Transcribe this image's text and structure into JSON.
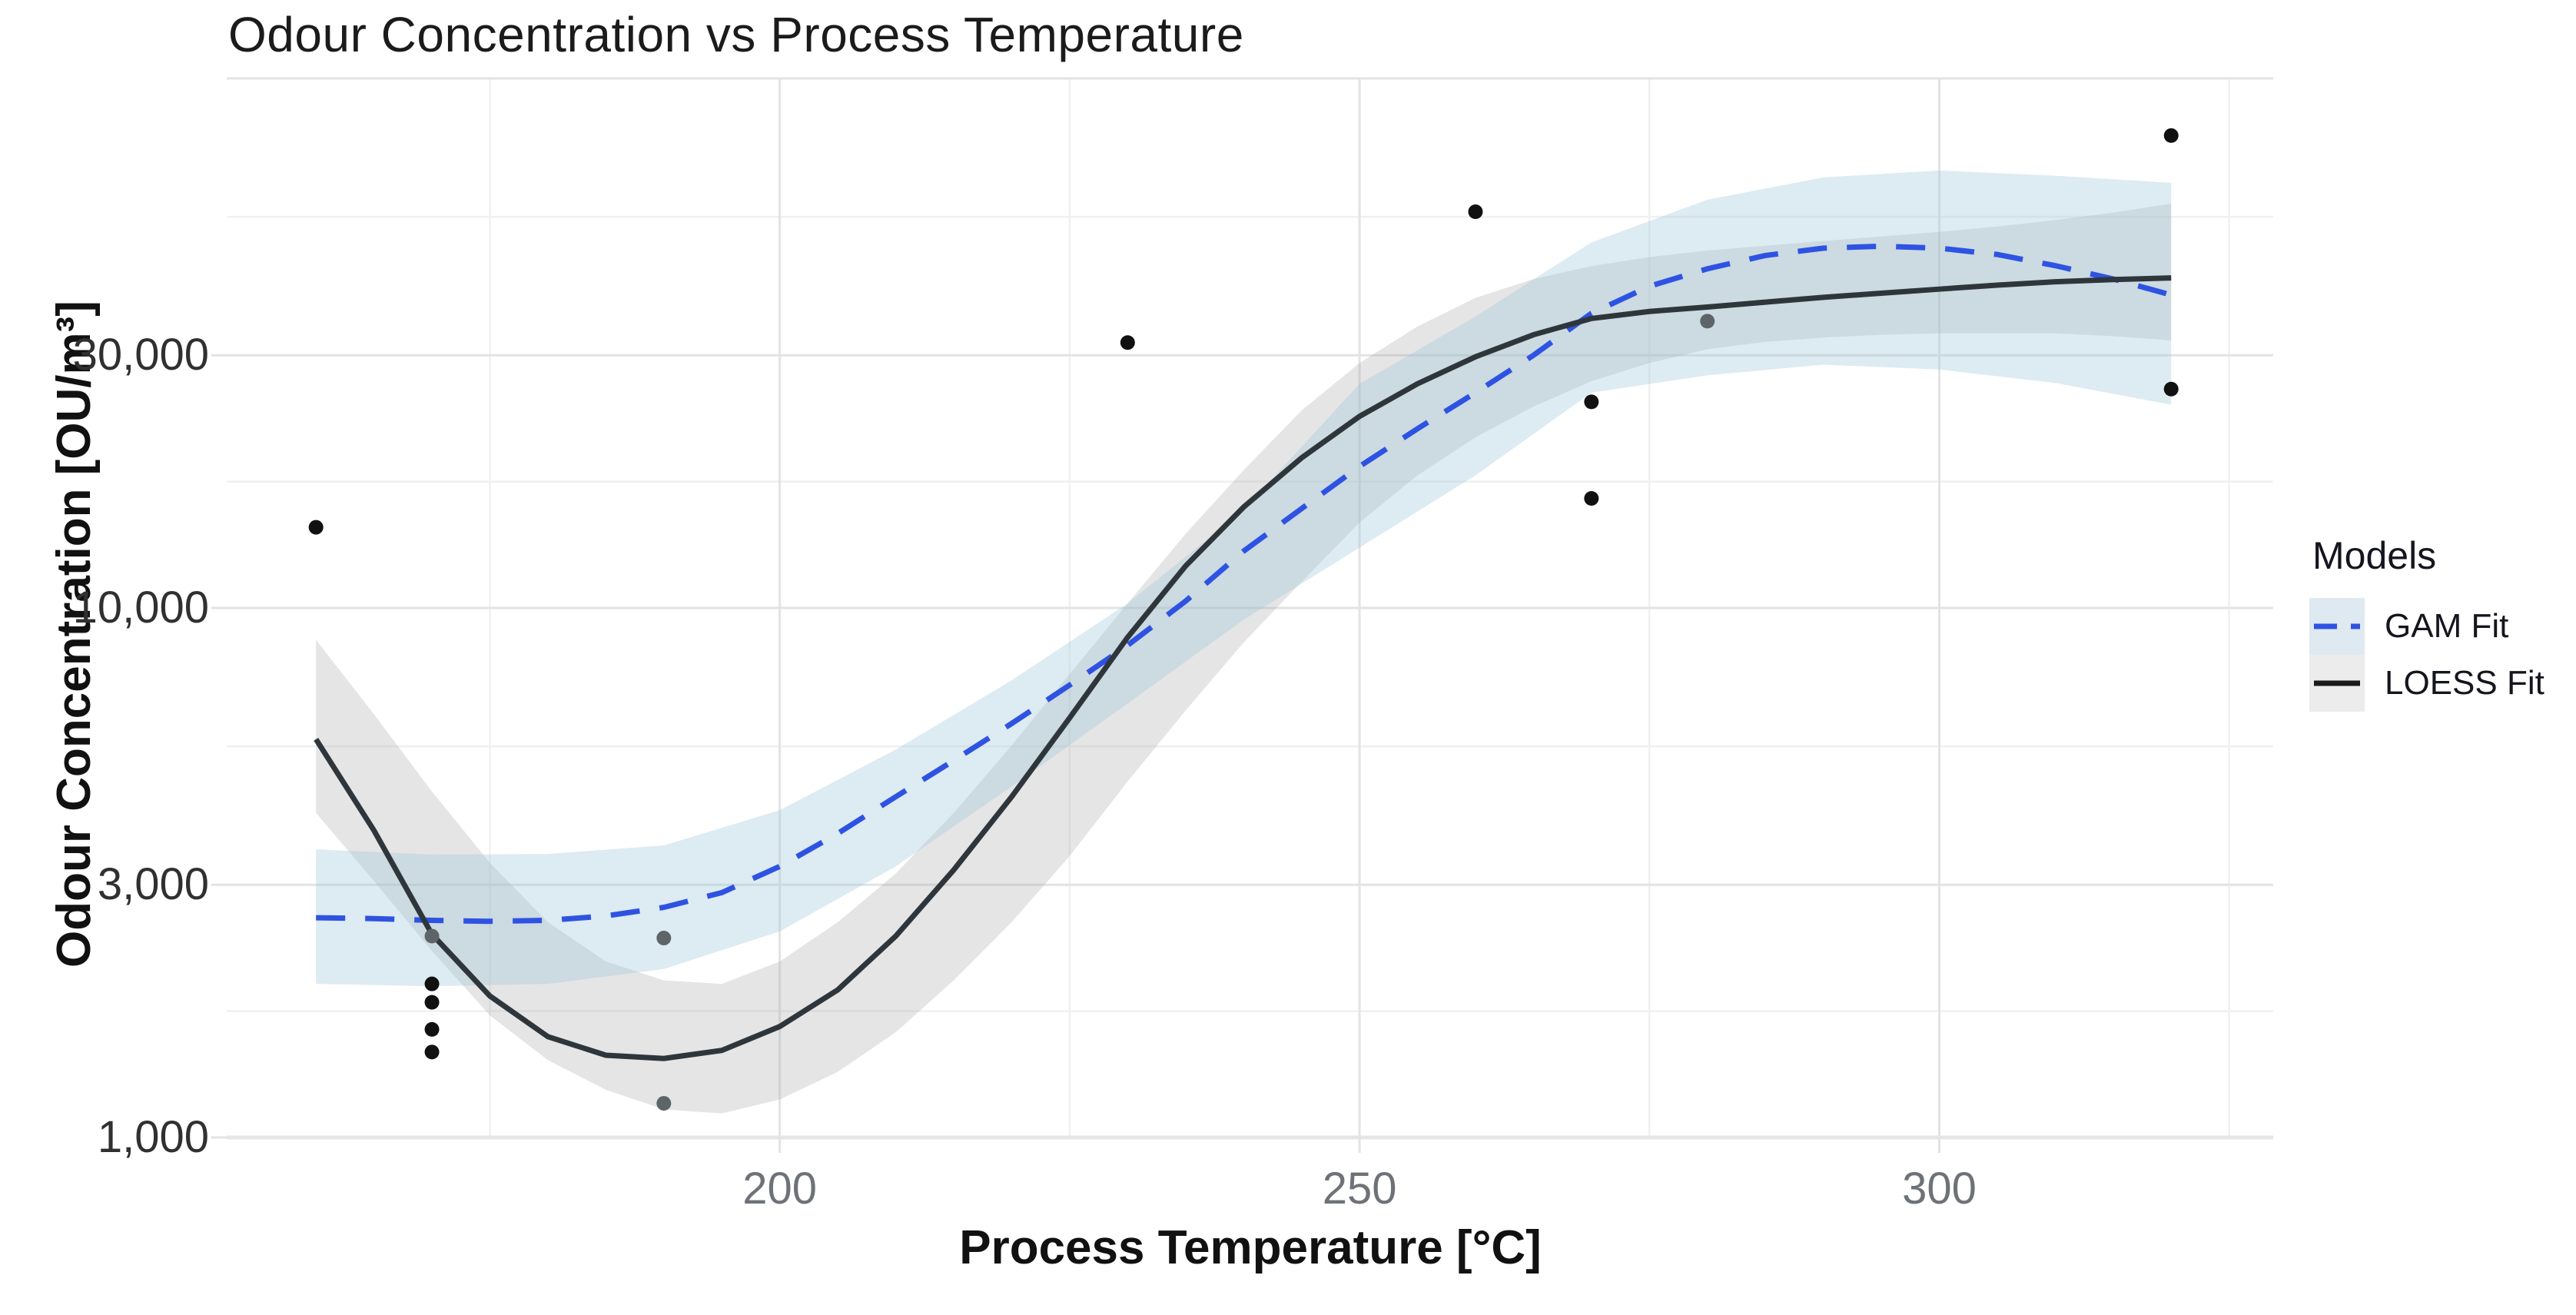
{
  "title": "Odour Concentration vs Process Temperature",
  "axes": {
    "x": {
      "label": "Process Temperature [°C]",
      "range": [
        152.3,
        328.8
      ],
      "major_ticks": [
        200,
        250,
        300
      ],
      "tick_labels": [
        "200",
        "250",
        "300"
      ],
      "minor_ticks": [
        175,
        225,
        275,
        325
      ]
    },
    "y": {
      "label": "Odour Concentration [OU/m³]",
      "scale": "log10",
      "range": [
        1000,
        100000
      ],
      "major_gridlines": [
        1000,
        3000,
        10000,
        30000,
        100000
      ],
      "tick_labels": [
        "1,000",
        "3,000",
        "10,000",
        "30,000",
        ""
      ],
      "minor_gridlines": [
        1732,
        5477,
        17320,
        54770
      ]
    }
  },
  "legend": {
    "title": "Models",
    "items": [
      {
        "label": "GAM Fit",
        "line_style": "dashed",
        "line_color": "#2e53e2",
        "swatch_color": "#dee9f1"
      },
      {
        "label": "LOESS Fit",
        "line_style": "solid",
        "line_color": "#1a1a1a",
        "swatch_color": "#ececec"
      }
    ]
  },
  "colors": {
    "background": "#ffffff",
    "major_grid": "#e3e3e3",
    "minor_grid": "#f0f0f0",
    "panel_edge": "#e6e6e6",
    "gam_line": "#2e53e2",
    "loess_line": "#2e363c",
    "gam_ribbon": "#9ec6db",
    "loess_ribbon": "#a0a0a0",
    "point_black": "#111111",
    "point_gray": "#5d6568"
  },
  "chart_data": {
    "type": "scatter",
    "title": "Odour Concentration vs Process Temperature",
    "xlabel": "Process Temperature [°C]",
    "ylabel": "Odour Concentration [OU/m³]",
    "xlim": [
      152.3,
      328.8
    ],
    "ylim": [
      1000,
      100000
    ],
    "y_scale": "log10",
    "grid": "on",
    "legend_position": "right",
    "points": [
      {
        "x": 160,
        "y": 14200,
        "shade": "black"
      },
      {
        "x": 170,
        "y": 2400,
        "shade": "gray"
      },
      {
        "x": 170,
        "y": 1950,
        "shade": "black"
      },
      {
        "x": 170,
        "y": 1800,
        "shade": "black"
      },
      {
        "x": 170,
        "y": 1600,
        "shade": "black"
      },
      {
        "x": 170,
        "y": 1450,
        "shade": "black"
      },
      {
        "x": 190,
        "y": 2380,
        "shade": "gray"
      },
      {
        "x": 190,
        "y": 1160,
        "shade": "gray"
      },
      {
        "x": 230,
        "y": 31700,
        "shade": "black"
      },
      {
        "x": 260,
        "y": 56000,
        "shade": "black"
      },
      {
        "x": 270,
        "y": 24500,
        "shade": "black"
      },
      {
        "x": 270,
        "y": 16100,
        "shade": "black"
      },
      {
        "x": 280,
        "y": 34800,
        "shade": "gray"
      },
      {
        "x": 320,
        "y": 78000,
        "shade": "black"
      },
      {
        "x": 320,
        "y": 25900,
        "shade": "black"
      }
    ],
    "series": [
      {
        "name": "GAM Fit",
        "style": "dashed",
        "values": [
          [
            160,
            2600
          ],
          [
            165,
            2590
          ],
          [
            170,
            2570
          ],
          [
            175,
            2560
          ],
          [
            180,
            2570
          ],
          [
            185,
            2620
          ],
          [
            190,
            2720
          ],
          [
            195,
            2900
          ],
          [
            200,
            3250
          ],
          [
            205,
            3750
          ],
          [
            210,
            4400
          ],
          [
            215,
            5150
          ],
          [
            220,
            6050
          ],
          [
            225,
            7150
          ],
          [
            230,
            8500
          ],
          [
            235,
            10300
          ],
          [
            240,
            12800
          ],
          [
            245,
            15400
          ],
          [
            250,
            18500
          ],
          [
            255,
            21800
          ],
          [
            260,
            25500
          ],
          [
            265,
            30000
          ],
          [
            270,
            36000
          ],
          [
            275,
            40500
          ],
          [
            280,
            43700
          ],
          [
            285,
            46300
          ],
          [
            290,
            47800
          ],
          [
            295,
            48200
          ],
          [
            300,
            47800
          ],
          [
            305,
            46500
          ],
          [
            310,
            44300
          ],
          [
            315,
            41800
          ],
          [
            320,
            39000
          ]
        ],
        "ci_upper": [
          [
            160,
            3500
          ],
          [
            170,
            3420
          ],
          [
            180,
            3430
          ],
          [
            190,
            3560
          ],
          [
            200,
            4150
          ],
          [
            210,
            5400
          ],
          [
            220,
            7300
          ],
          [
            230,
            10200
          ],
          [
            240,
            15300
          ],
          [
            250,
            26500
          ],
          [
            260,
            35500
          ],
          [
            270,
            49000
          ],
          [
            280,
            59000
          ],
          [
            290,
            65000
          ],
          [
            300,
            67000
          ],
          [
            310,
            65500
          ],
          [
            320,
            63500
          ]
        ],
        "ci_lower": [
          [
            160,
            1950
          ],
          [
            170,
            1930
          ],
          [
            180,
            1950
          ],
          [
            190,
            2080
          ],
          [
            200,
            2450
          ],
          [
            210,
            3250
          ],
          [
            220,
            4600
          ],
          [
            230,
            6600
          ],
          [
            240,
            9500
          ],
          [
            250,
            13000
          ],
          [
            260,
            17800
          ],
          [
            270,
            25500
          ],
          [
            280,
            27500
          ],
          [
            290,
            28800
          ],
          [
            300,
            28200
          ],
          [
            310,
            26600
          ],
          [
            320,
            24200
          ]
        ]
      },
      {
        "name": "LOESS Fit",
        "style": "solid",
        "values": [
          [
            160,
            5650
          ],
          [
            165,
            3800
          ],
          [
            170,
            2420
          ],
          [
            175,
            1850
          ],
          [
            180,
            1550
          ],
          [
            185,
            1430
          ],
          [
            190,
            1410
          ],
          [
            195,
            1460
          ],
          [
            200,
            1620
          ],
          [
            205,
            1900
          ],
          [
            210,
            2400
          ],
          [
            215,
            3200
          ],
          [
            220,
            4400
          ],
          [
            225,
            6200
          ],
          [
            230,
            8800
          ],
          [
            235,
            12000
          ],
          [
            240,
            15500
          ],
          [
            245,
            19200
          ],
          [
            250,
            23000
          ],
          [
            255,
            26500
          ],
          [
            260,
            29800
          ],
          [
            265,
            32800
          ],
          [
            270,
            35200
          ],
          [
            275,
            36300
          ],
          [
            280,
            37000
          ],
          [
            285,
            37800
          ],
          [
            290,
            38600
          ],
          [
            295,
            39300
          ],
          [
            300,
            40000
          ],
          [
            305,
            40700
          ],
          [
            310,
            41300
          ],
          [
            315,
            41700
          ],
          [
            320,
            42000
          ]
        ],
        "ci_upper": [
          [
            160,
            8700
          ],
          [
            165,
            6300
          ],
          [
            170,
            4500
          ],
          [
            175,
            3300
          ],
          [
            180,
            2550
          ],
          [
            185,
            2150
          ],
          [
            190,
            1980
          ],
          [
            195,
            1950
          ],
          [
            200,
            2150
          ],
          [
            205,
            2550
          ],
          [
            210,
            3150
          ],
          [
            215,
            4100
          ],
          [
            220,
            5500
          ],
          [
            225,
            7500
          ],
          [
            230,
            10200
          ],
          [
            235,
            13800
          ],
          [
            240,
            18200
          ],
          [
            245,
            23600
          ],
          [
            250,
            29000
          ],
          [
            255,
            34000
          ],
          [
            260,
            38500
          ],
          [
            265,
            41800
          ],
          [
            270,
            44200
          ],
          [
            275,
            46000
          ],
          [
            280,
            47300
          ],
          [
            285,
            48300
          ],
          [
            290,
            49300
          ],
          [
            295,
            50300
          ],
          [
            300,
            51300
          ],
          [
            305,
            52500
          ],
          [
            310,
            54000
          ],
          [
            315,
            55800
          ],
          [
            320,
            58000
          ]
        ],
        "ci_lower": [
          [
            160,
            4100
          ],
          [
            165,
            3050
          ],
          [
            170,
            2250
          ],
          [
            175,
            1700
          ],
          [
            180,
            1400
          ],
          [
            185,
            1230
          ],
          [
            190,
            1130
          ],
          [
            195,
            1110
          ],
          [
            200,
            1180
          ],
          [
            205,
            1330
          ],
          [
            210,
            1580
          ],
          [
            215,
            1980
          ],
          [
            220,
            2550
          ],
          [
            225,
            3400
          ],
          [
            230,
            4700
          ],
          [
            235,
            6400
          ],
          [
            240,
            8600
          ],
          [
            245,
            11200
          ],
          [
            250,
            14500
          ],
          [
            255,
            17800
          ],
          [
            260,
            21000
          ],
          [
            265,
            24000
          ],
          [
            270,
            26800
          ],
          [
            275,
            29000
          ],
          [
            280,
            30800
          ],
          [
            285,
            31800
          ],
          [
            290,
            32400
          ],
          [
            295,
            32800
          ],
          [
            300,
            33000
          ],
          [
            305,
            33000
          ],
          [
            310,
            33000
          ],
          [
            315,
            32600
          ],
          [
            320,
            32000
          ]
        ]
      }
    ]
  }
}
